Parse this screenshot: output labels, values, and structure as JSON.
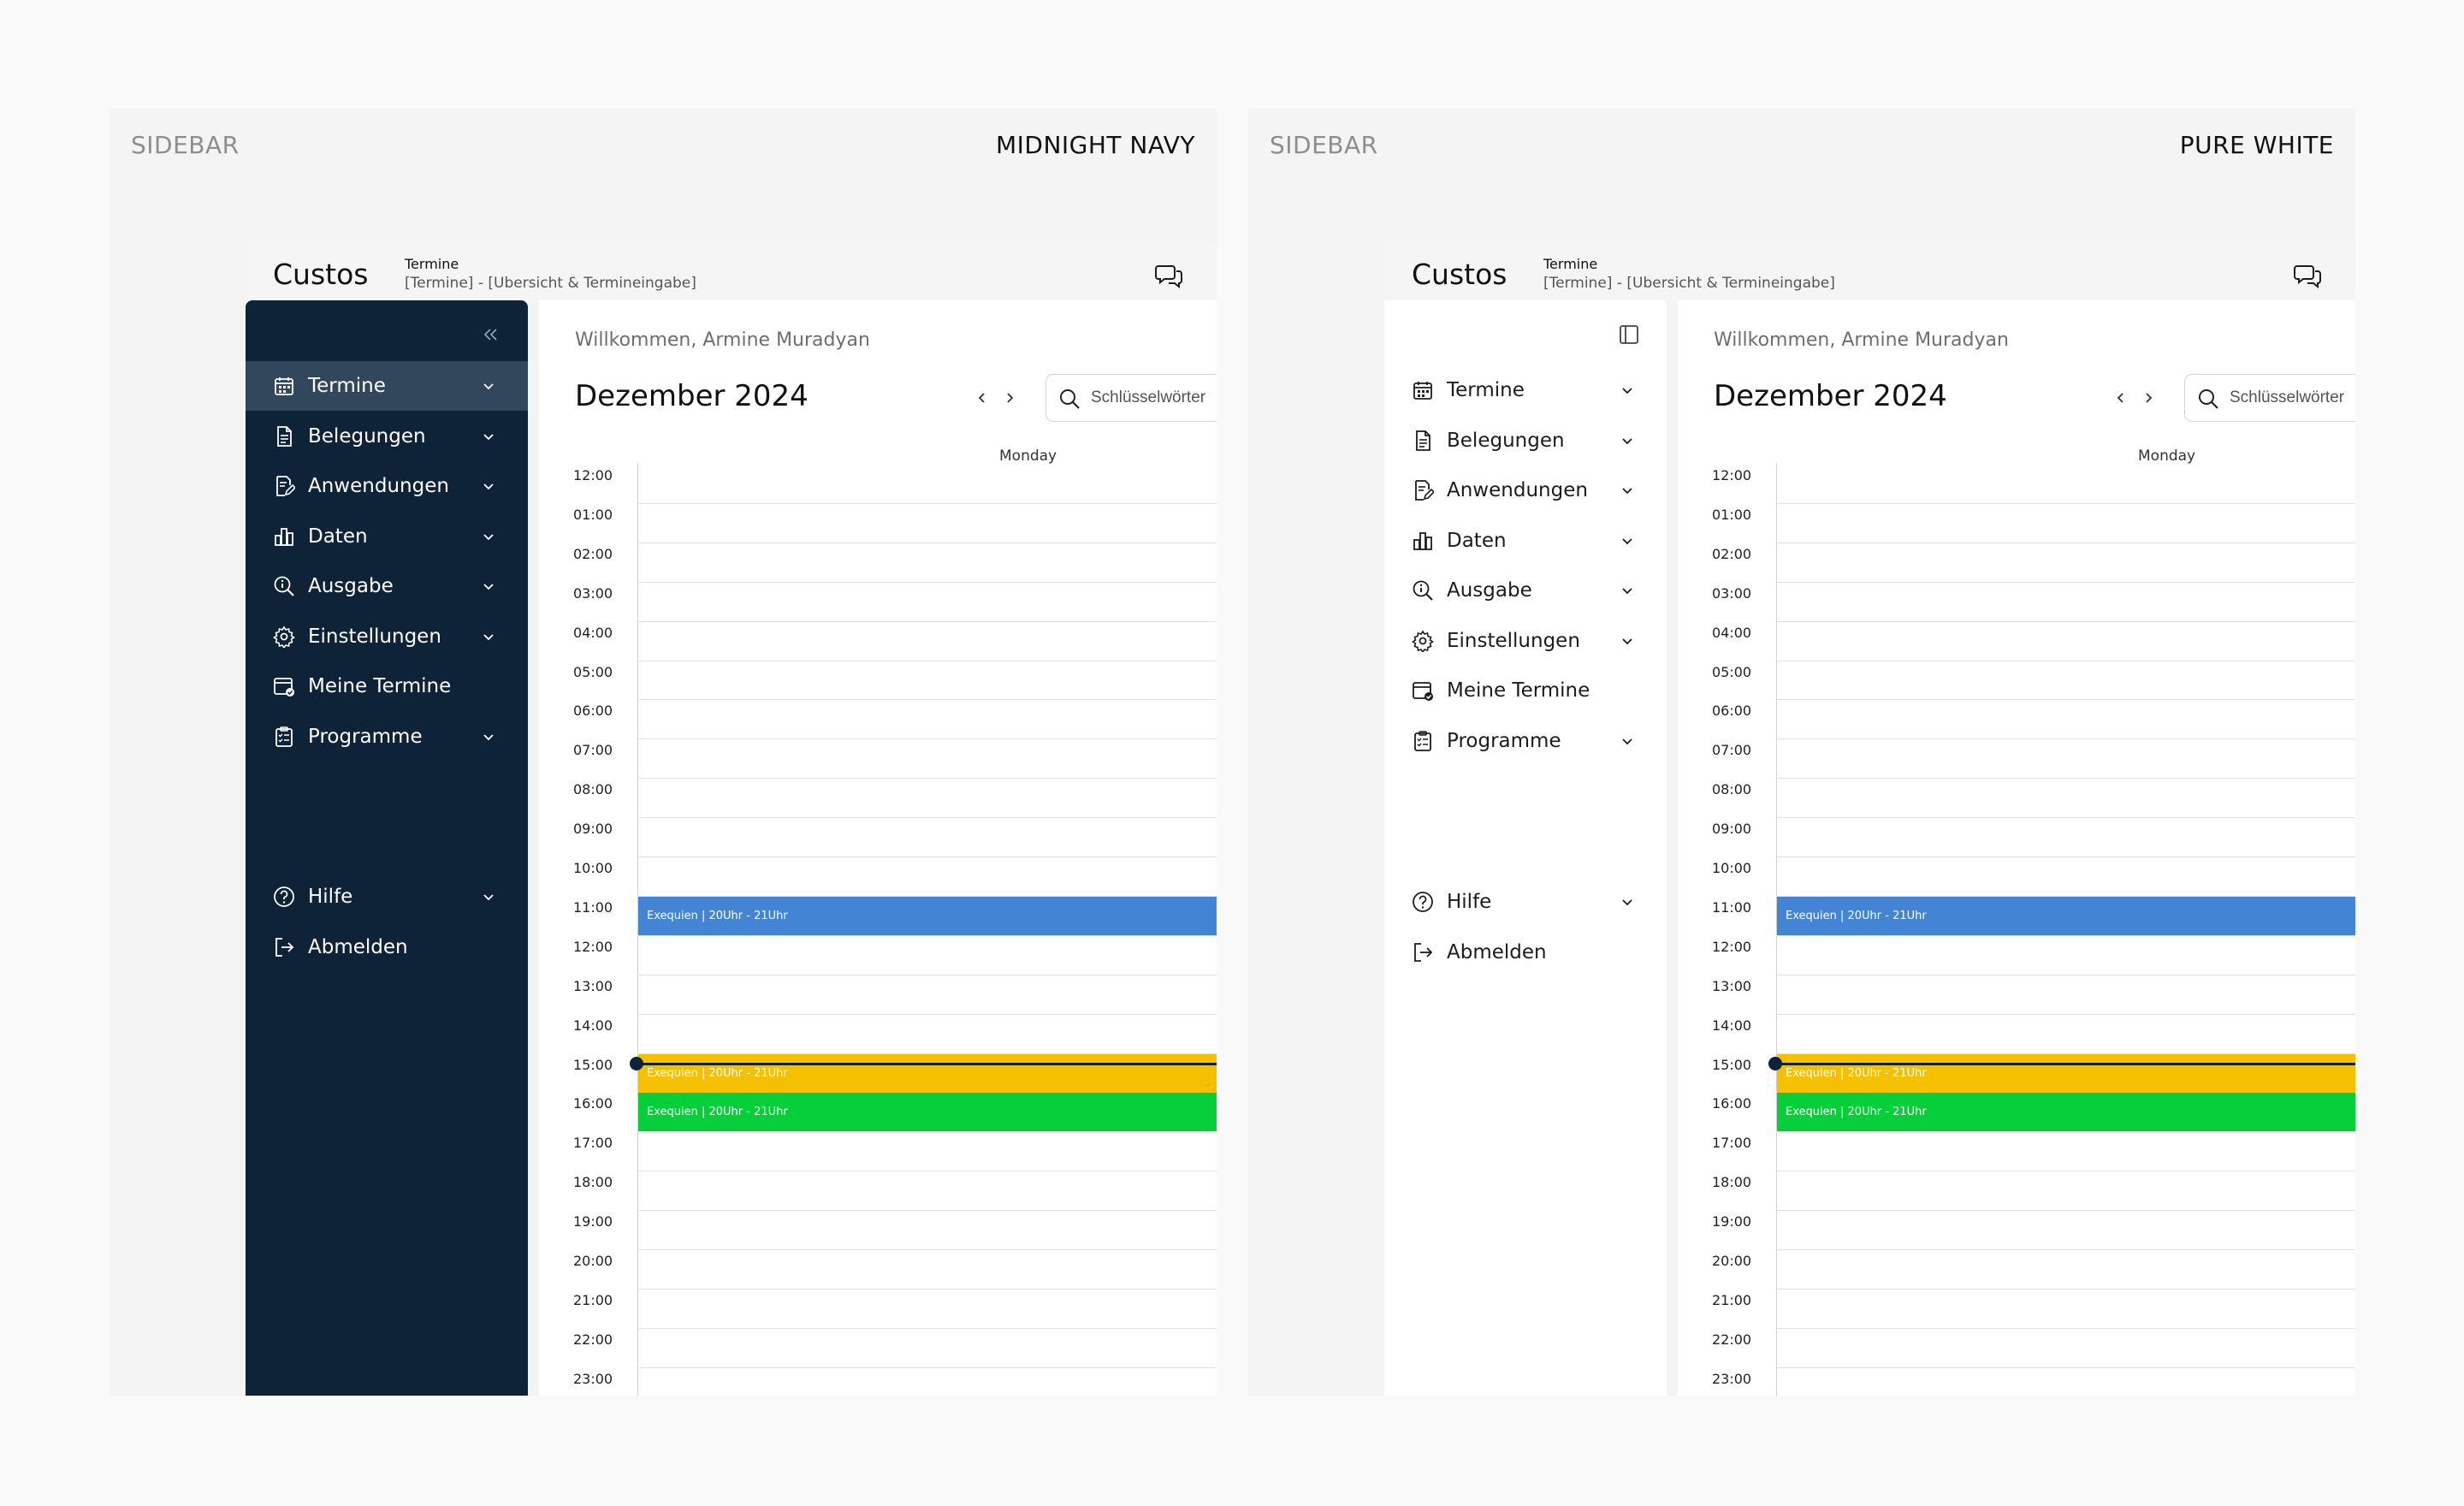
{
  "panels": [
    {
      "label_left": "SIDEBAR",
      "label_right": "MIDNIGHT NAVY",
      "variant": "navy",
      "sidebar_bg": "#0e2238",
      "active_bg": "#33475c"
    },
    {
      "label_left": "SIDEBAR",
      "label_right": "PURE WHITE",
      "variant": "white",
      "sidebar_bg": "#ffffff"
    }
  ],
  "app": {
    "title": "Custos",
    "breadcrumb_title": "Termine",
    "breadcrumb_path": "[Termine] - [Ubersicht & Termineingabe]"
  },
  "sidebar": {
    "items": [
      {
        "label": "Termine",
        "icon": "calendar-icon",
        "chevron": true
      },
      {
        "label": "Belegungen",
        "icon": "document-icon",
        "chevron": true
      },
      {
        "label": "Anwendungen",
        "icon": "edit-document-icon",
        "chevron": true
      },
      {
        "label": "Daten",
        "icon": "bar-chart-icon",
        "chevron": true
      },
      {
        "label": "Ausgabe",
        "icon": "info-search-icon",
        "chevron": true
      },
      {
        "label": "Einstellungen",
        "icon": "gear-icon",
        "chevron": true
      },
      {
        "label": "Meine Termine",
        "icon": "calendar-check-icon",
        "chevron": false
      },
      {
        "label": "Programme",
        "icon": "clipboard-icon",
        "chevron": true
      }
    ],
    "bottom_items": [
      {
        "label": "Hilfe",
        "icon": "help-circle-icon",
        "chevron": true
      },
      {
        "label": "Abmelden",
        "icon": "logout-icon",
        "chevron": false
      }
    ]
  },
  "main": {
    "welcome": "Willkommen, Armine Muradyan",
    "month": "Dezember 2024",
    "search_placeholder": "Schlüsselwörter",
    "day_header": "Monday",
    "hours": [
      "12:00",
      "01:00",
      "02:00",
      "03:00",
      "04:00",
      "05:00",
      "06:00",
      "07:00",
      "08:00",
      "09:00",
      "10:00",
      "11:00",
      "12:00",
      "13:00",
      "14:00",
      "15:00",
      "16:00",
      "17:00",
      "18:00",
      "19:00",
      "20:00",
      "21:00",
      "22:00",
      "23:00"
    ],
    "events": [
      {
        "label": "Exequien | 20Uhr - 21Uhr",
        "slot": 11,
        "color": "#4385d4"
      },
      {
        "label": "Exequien | 20Uhr - 21Uhr",
        "slot": 15,
        "color": "#f5c000"
      },
      {
        "label": "Exequien | 20Uhr - 21Uhr",
        "slot": 16,
        "color": "#06cf3a"
      }
    ]
  }
}
